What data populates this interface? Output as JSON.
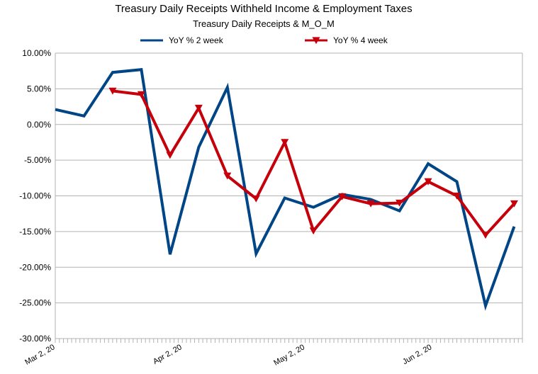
{
  "chart_data": {
    "type": "line",
    "title": "Treasury Daily Receipts Withheld Income & Employment Taxes",
    "subtitle": "Treasury Daily Receipts & M_O_M",
    "ylim": [
      -0.3,
      0.1
    ],
    "y_ticks": [
      0.1,
      0.05,
      0.0,
      -0.05,
      -0.1,
      -0.15,
      -0.2,
      -0.25,
      -0.3
    ],
    "y_tick_labels": [
      "10.00%",
      "5.00%",
      "0.00%",
      "-5.00%",
      "-10.00%",
      "-15.00%",
      "-20.00%",
      "-25.00%",
      "-30.00%"
    ],
    "x_date_labels": [
      {
        "date": "2020-03-02",
        "label": "Mar 2, 20"
      },
      {
        "date": "2020-04-02",
        "label": "Apr 2, 20"
      },
      {
        "date": "2020-05-02",
        "label": "May 2, 20"
      },
      {
        "date": "2020-06-02",
        "label": "Jun 2, 20"
      }
    ],
    "xlim": [
      "2020-03-02",
      "2020-06-24"
    ],
    "grid": true,
    "legend_position": "top",
    "series": [
      {
        "name": "YoY % 2 week",
        "color": "#004586",
        "marker": "none",
        "points": [
          {
            "x": "2020-03-02",
            "y": 0.021
          },
          {
            "x": "2020-03-09",
            "y": 0.012
          },
          {
            "x": "2020-03-16",
            "y": 0.073
          },
          {
            "x": "2020-03-23",
            "y": 0.077
          },
          {
            "x": "2020-03-30",
            "y": -0.182
          },
          {
            "x": "2020-04-06",
            "y": -0.032
          },
          {
            "x": "2020-04-13",
            "y": 0.052
          },
          {
            "x": "2020-04-20",
            "y": -0.181
          },
          {
            "x": "2020-04-27",
            "y": -0.103
          },
          {
            "x": "2020-05-04",
            "y": -0.116
          },
          {
            "x": "2020-05-11",
            "y": -0.098
          },
          {
            "x": "2020-05-18",
            "y": -0.105
          },
          {
            "x": "2020-05-25",
            "y": -0.121
          },
          {
            "x": "2020-06-01",
            "y": -0.055
          },
          {
            "x": "2020-06-08",
            "y": -0.08
          },
          {
            "x": "2020-06-15",
            "y": -0.254
          },
          {
            "x": "2020-06-22",
            "y": -0.143
          }
        ]
      },
      {
        "name": "YoY % 4 week",
        "color": "#c5000b",
        "marker": "triangle-down",
        "points": [
          {
            "x": "2020-03-16",
            "y": 0.047
          },
          {
            "x": "2020-03-23",
            "y": 0.042
          },
          {
            "x": "2020-03-30",
            "y": -0.043
          },
          {
            "x": "2020-04-06",
            "y": 0.023
          },
          {
            "x": "2020-04-13",
            "y": -0.072
          },
          {
            "x": "2020-04-20",
            "y": -0.104
          },
          {
            "x": "2020-04-27",
            "y": -0.025
          },
          {
            "x": "2020-05-04",
            "y": -0.149
          },
          {
            "x": "2020-05-11",
            "y": -0.101
          },
          {
            "x": "2020-05-18",
            "y": -0.111
          },
          {
            "x": "2020-05-25",
            "y": -0.11
          },
          {
            "x": "2020-06-01",
            "y": -0.08
          },
          {
            "x": "2020-06-08",
            "y": -0.1
          },
          {
            "x": "2020-06-15",
            "y": -0.155
          },
          {
            "x": "2020-06-22",
            "y": -0.111
          }
        ]
      }
    ]
  }
}
